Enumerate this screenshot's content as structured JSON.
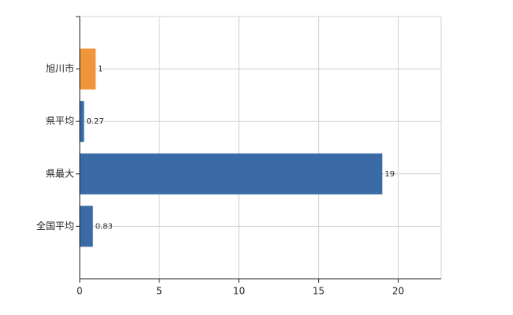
{
  "chart_data": {
    "type": "bar",
    "orientation": "horizontal",
    "categories": [
      "旭川市",
      "県平均",
      "県最大",
      "全国平均"
    ],
    "values": [
      1,
      0.27,
      19,
      0.83
    ],
    "colors": [
      "#f0963a",
      "#3a6ba6",
      "#3a6ba6",
      "#3a6ba6"
    ],
    "xlim": [
      0,
      22.7
    ],
    "xticks": [
      0,
      5,
      10,
      15,
      20
    ],
    "grid": true
  }
}
